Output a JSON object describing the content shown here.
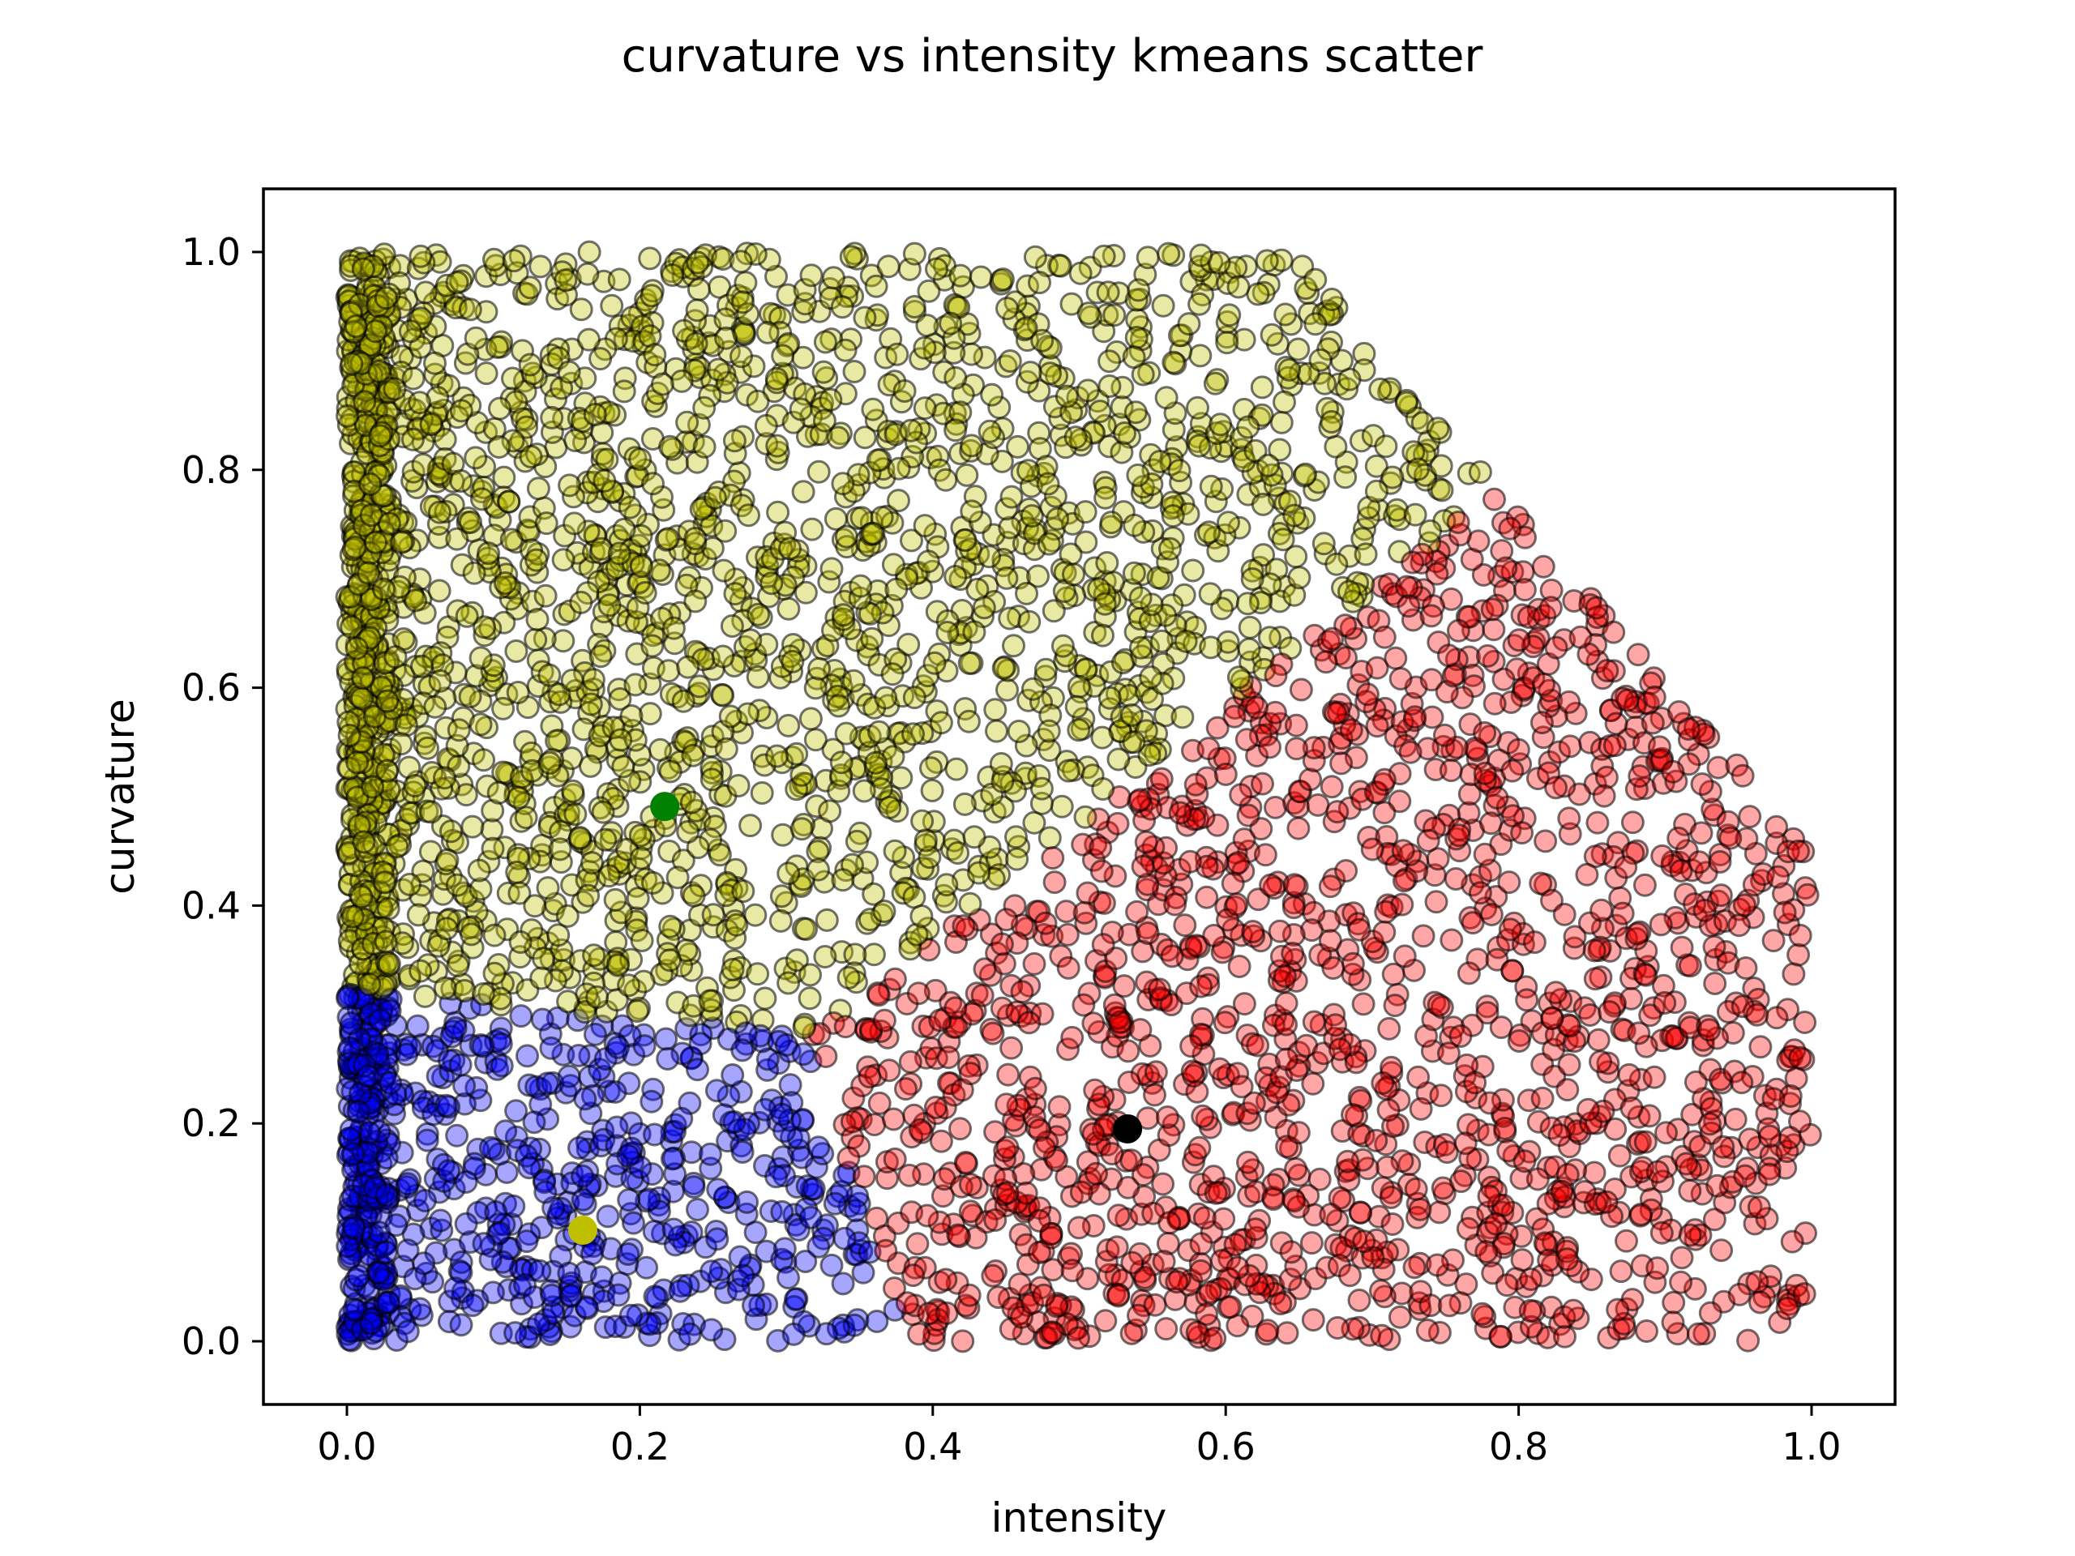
{
  "chart_data": {
    "type": "scatter",
    "title": "curvature vs intensity kmeans scatter",
    "xlabel": "intensity",
    "ylabel": "curvature",
    "xlim": [
      -0.057,
      1.057
    ],
    "ylim": [
      -0.058,
      1.058
    ],
    "xticks": [
      0.0,
      0.2,
      0.4,
      0.6,
      0.8,
      1.0
    ],
    "xtick_labels": [
      "0.0",
      "0.2",
      "0.4",
      "0.6",
      "0.8",
      "1.0"
    ],
    "yticks": [
      0.0,
      0.2,
      0.4,
      0.6,
      0.8,
      1.0
    ],
    "ytick_labels": [
      "0.0",
      "0.2",
      "0.4",
      "0.6",
      "0.8",
      "1.0"
    ],
    "grid": false,
    "legend": "none",
    "marker_alpha": 0.35,
    "clusters": [
      {
        "color": "#bfbf00",
        "region": "upper",
        "x_range": [
          0.0,
          0.86
        ],
        "y_range": [
          0.32,
          1.0
        ],
        "centroid_marker": {
          "x": 0.217,
          "y": 0.491,
          "color": "#008000"
        }
      },
      {
        "color": "#0000ff",
        "region": "lower-left",
        "x_range": [
          0.0,
          0.32
        ],
        "y_range": [
          0.0,
          0.39
        ],
        "centroid_marker": {
          "x": 0.161,
          "y": 0.102,
          "color": "#bfbf00"
        }
      },
      {
        "color": "#ff0000",
        "region": "lower-right",
        "x_range": [
          0.27,
          1.0
        ],
        "y_range": [
          0.0,
          0.84
        ],
        "centroid_marker": {
          "x": 0.533,
          "y": 0.195,
          "color": "#000000"
        }
      }
    ]
  }
}
